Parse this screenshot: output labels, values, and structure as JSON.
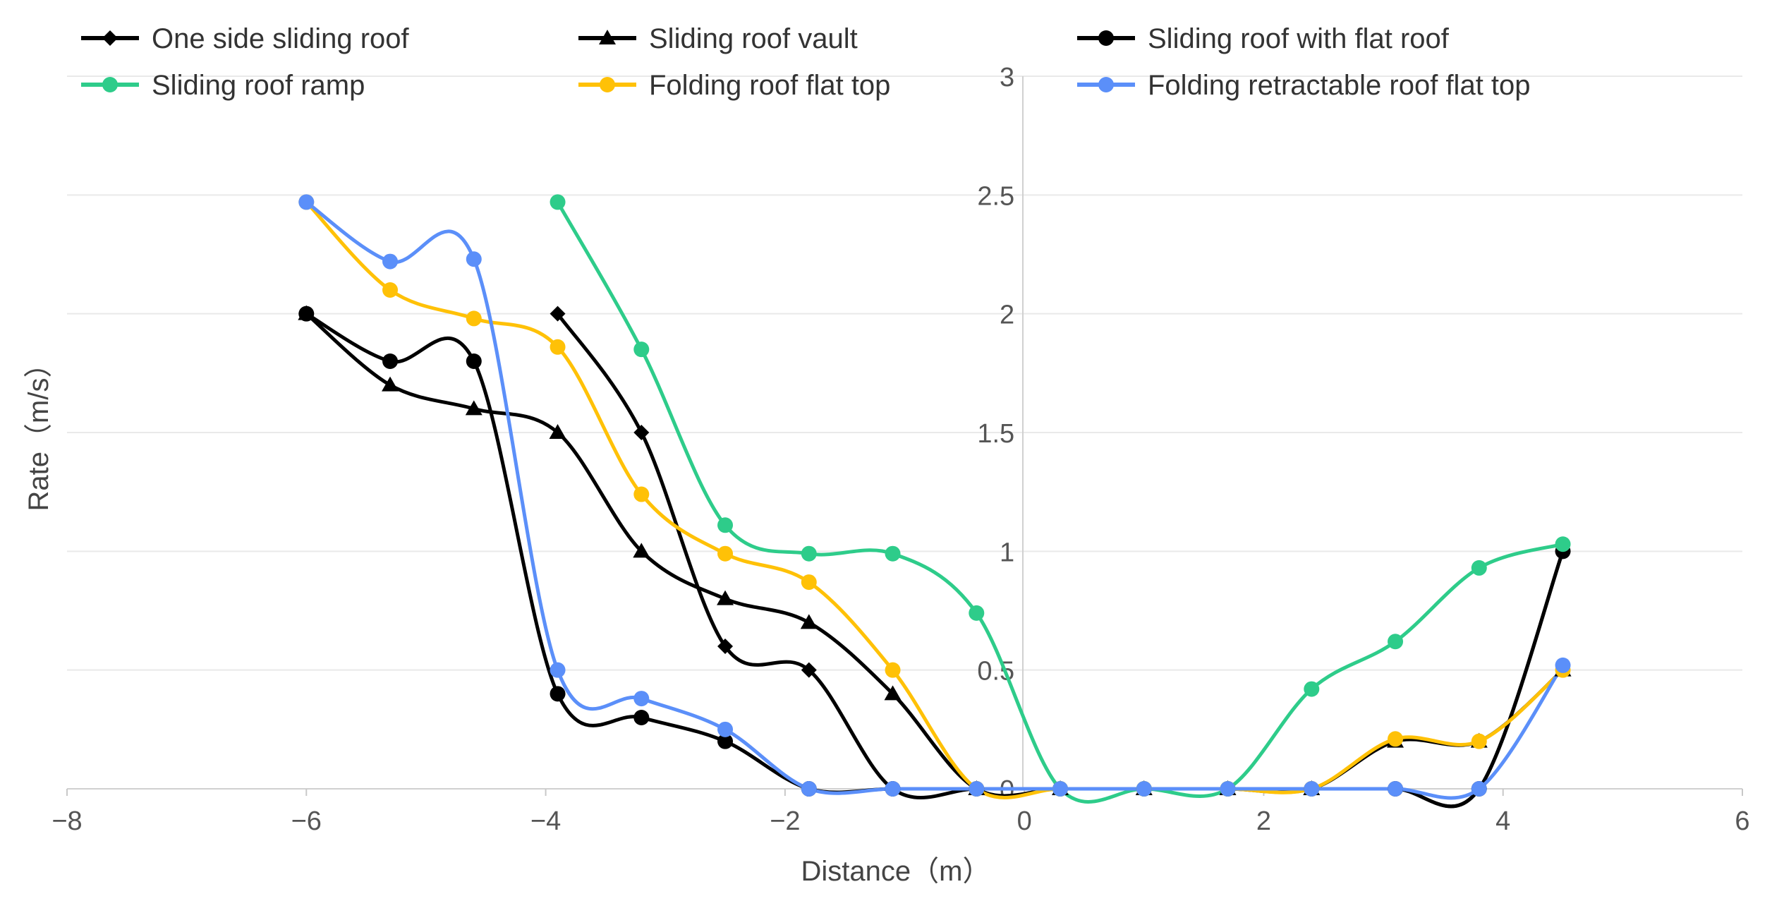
{
  "chart_data": {
    "type": "line",
    "title": "",
    "xlabel": "Distance（m）",
    "ylabel": "Rate（m/s）",
    "xlim": [
      -8,
      6
    ],
    "ylim": [
      0,
      3
    ],
    "xticks": [
      -8,
      -6,
      -4,
      -2,
      0,
      2,
      4,
      6
    ],
    "xtick_labels": [
      "−8",
      "−6",
      "−4",
      "−2",
      "0",
      "2",
      "4",
      "6"
    ],
    "yticks": [
      0,
      0.5,
      1,
      1.5,
      2,
      2.5,
      3
    ],
    "ytick_labels": [
      "0",
      "0.5",
      "1",
      "1.5",
      "2",
      "2.5",
      "3"
    ],
    "grid": true,
    "legend_position": "top",
    "series": [
      {
        "name": "One side sliding roof",
        "color": "#000000",
        "marker": "diamond",
        "x": [
          -3.9,
          -3.2,
          -2.5,
          -1.8,
          -1.1,
          -0.4,
          0.3,
          1.0,
          1.7,
          2.4,
          3.1,
          3.8,
          4.5
        ],
        "y": [
          2.0,
          1.5,
          0.6,
          0.5,
          0,
          0,
          0,
          0,
          0,
          0,
          0,
          0,
          1.0
        ]
      },
      {
        "name": "Sliding roof vault",
        "color": "#000000",
        "marker": "triangle",
        "x": [
          -6.0,
          -5.3,
          -4.6,
          -3.9,
          -3.2,
          -2.5,
          -1.8,
          -1.1,
          -0.4,
          0.3,
          1.0,
          1.7,
          2.4,
          3.1,
          3.8,
          4.5
        ],
        "y": [
          2.0,
          1.7,
          1.6,
          1.5,
          1.0,
          0.8,
          0.7,
          0.4,
          0,
          0,
          0,
          0,
          0,
          0.2,
          0.2,
          0.5
        ]
      },
      {
        "name": "Sliding roof with flat roof",
        "color": "#000000",
        "marker": "circle",
        "x": [
          -6.0,
          -5.3,
          -4.6,
          -3.9,
          -3.2,
          -2.5,
          -1.8,
          -1.1,
          -0.4,
          0.3,
          1.0,
          1.7,
          2.4,
          3.1,
          3.8,
          4.5
        ],
        "y": [
          2.0,
          1.8,
          1.8,
          0.4,
          0.3,
          0.2,
          0,
          0,
          0,
          0,
          0,
          0,
          0,
          0,
          0,
          1.0
        ]
      },
      {
        "name": "Sliding roof ramp",
        "color": "#2ecc8a",
        "marker": "circle",
        "x": [
          -3.9,
          -3.2,
          -2.5,
          -1.8,
          -1.1,
          -0.4,
          0.3,
          1.0,
          1.7,
          2.4,
          3.1,
          3.8,
          4.5
        ],
        "y": [
          2.47,
          1.85,
          1.11,
          0.99,
          0.99,
          0.74,
          0,
          0,
          0,
          0.42,
          0.62,
          0.93,
          1.03
        ]
      },
      {
        "name": "Folding roof flat top",
        "color": "#ffc107",
        "marker": "circle",
        "x": [
          -6.0,
          -5.3,
          -4.6,
          -3.9,
          -3.2,
          -2.5,
          -1.8,
          -1.1,
          -0.4,
          0.3,
          1.0,
          1.7,
          2.4,
          3.1,
          3.8,
          4.5
        ],
        "y": [
          2.47,
          2.1,
          1.98,
          1.86,
          1.24,
          0.99,
          0.87,
          0.5,
          0,
          0,
          0,
          0,
          0,
          0.21,
          0.2,
          0.5
        ]
      },
      {
        "name": "Folding retractable roof flat top",
        "color": "#5b8ff9",
        "marker": "circle",
        "x": [
          -6.0,
          -5.3,
          -4.6,
          -3.9,
          -3.2,
          -2.5,
          -1.8,
          -1.1,
          -0.4,
          0.3,
          1.0,
          1.7,
          2.4,
          3.1,
          3.8,
          4.5
        ],
        "y": [
          2.47,
          2.22,
          2.23,
          0.5,
          0.38,
          0.25,
          0,
          0,
          0,
          0,
          0,
          0,
          0,
          0,
          0,
          0.52
        ]
      }
    ]
  }
}
